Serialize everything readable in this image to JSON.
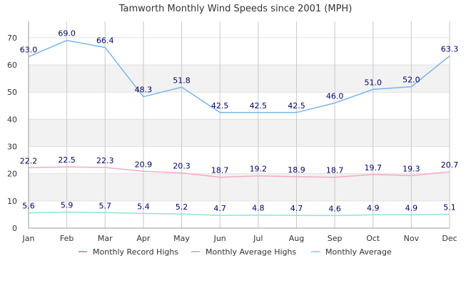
{
  "chart_data": {
    "type": "line",
    "title": "Tamworth Monthly Wind Speeds since 2001 (MPH)",
    "xlabel": "",
    "ylabel": "",
    "categories": [
      "Jan",
      "Feb",
      "Mar",
      "Apr",
      "May",
      "Jun",
      "Jul",
      "Aug",
      "Sep",
      "Oct",
      "Nov",
      "Dec"
    ],
    "ylim": [
      0,
      76
    ],
    "yticks": [
      "0",
      "10",
      "20",
      "30",
      "40",
      "50",
      "60",
      "70"
    ],
    "grid": true,
    "legend_position": "bottom",
    "series": [
      {
        "name": "Monthly Record Highs",
        "color": "#7cb5ec",
        "values": [
          63.0,
          69.0,
          66.4,
          48.3,
          51.8,
          42.5,
          42.5,
          42.5,
          46.0,
          51.0,
          52.0,
          63.3
        ],
        "labels": [
          "63.0",
          "69.0",
          "66.4",
          "48.3",
          "51.8",
          "42.5",
          "42.5",
          "42.5",
          "46.0",
          "51.0",
          "52.0",
          "63.3"
        ]
      },
      {
        "name": "Monthly Average Highs",
        "color": "#f4a9c8",
        "values": [
          22.2,
          22.5,
          22.3,
          20.9,
          20.3,
          18.7,
          19.2,
          18.9,
          18.7,
          19.7,
          19.3,
          20.7
        ],
        "labels": [
          "22.2",
          "22.5",
          "22.3",
          "20.9",
          "20.3",
          "18.7",
          "19.2",
          "18.9",
          "18.7",
          "19.7",
          "19.3",
          "20.7"
        ]
      },
      {
        "name": "Monthly Average",
        "color": "#8ee4d8",
        "values": [
          5.6,
          5.9,
          5.7,
          5.4,
          5.2,
          4.7,
          4.8,
          4.7,
          4.6,
          4.9,
          4.9,
          5.1
        ],
        "labels": [
          "5.6",
          "5.9",
          "5.7",
          "5.4",
          "5.2",
          "4.7",
          "4.8",
          "4.7",
          "4.6",
          "4.9",
          "4.9",
          "5.1"
        ]
      }
    ]
  }
}
